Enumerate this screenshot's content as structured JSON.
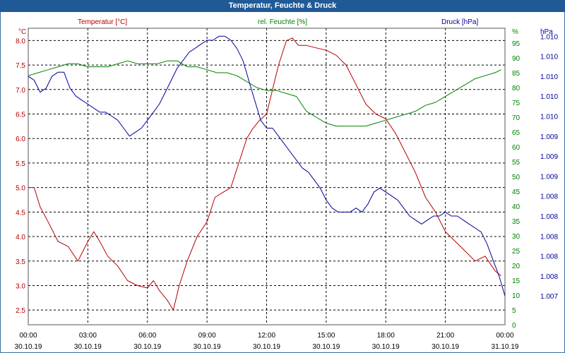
{
  "window": {
    "title": "Temperatur, Feuchte & Druck"
  },
  "colors": {
    "temperature": "#b40000",
    "humidity": "#008000",
    "pressure": "#00009c",
    "grid": "#000000",
    "titlebar": "#1f5a96"
  },
  "chart_data": {
    "type": "line",
    "title": "Temperatur, Feuchte & Druck",
    "x_ticks": [
      {
        "hour": 0,
        "time": "00:00",
        "date": "30.10.19"
      },
      {
        "hour": 3,
        "time": "03:00",
        "date": "30.10.19"
      },
      {
        "hour": 6,
        "time": "06:00",
        "date": "30.10.19"
      },
      {
        "hour": 9,
        "time": "09:00",
        "date": "30.10.19"
      },
      {
        "hour": 12,
        "time": "12:00",
        "date": "30.10.19"
      },
      {
        "hour": 15,
        "time": "15:00",
        "date": "30.10.19"
      },
      {
        "hour": 18,
        "time": "18:00",
        "date": "30.10.19"
      },
      {
        "hour": 21,
        "time": "21:00",
        "date": "30.10.19"
      },
      {
        "hour": 24,
        "time": "00:00",
        "date": "31.10.19"
      }
    ],
    "xlim": [
      0,
      24
    ],
    "axes": {
      "left": {
        "label": "Temperatur [°C]",
        "unit": "°C",
        "min": 2.2,
        "max": 8.25,
        "ticks": [
          "2.5",
          "3.0",
          "3.5",
          "4.0",
          "4.5",
          "5.0",
          "5.5",
          "6.0",
          "6.5",
          "7.0",
          "7.5",
          "8.0"
        ]
      },
      "middle": {
        "label": "rel. Feuchte [%]",
        "unit": "%",
        "min": 0,
        "max": 100,
        "ticks": [
          "0",
          "5",
          "10",
          "15",
          "20",
          "25",
          "30",
          "35",
          "40",
          "45",
          "50",
          "55",
          "60",
          "65",
          "70",
          "75",
          "80",
          "85",
          "90",
          "95"
        ]
      },
      "right": {
        "label": "Druck [hPa]",
        "unit": "hPa",
        "min": 1006.64,
        "max": 1010.35,
        "ticks": [
          "1.007",
          "1.008",
          "1.008",
          "1.008",
          "1.008",
          "1.008",
          "1.009",
          "1.009",
          "1.009",
          "1.010",
          "1.010",
          "1.010",
          "1.010",
          "1.010"
        ]
      }
    },
    "series": [
      {
        "name": "Temperatur",
        "axis": "left",
        "color": "#b40000",
        "x": [
          0,
          0.3,
          0.6,
          1.0,
          1.5,
          2.0,
          2.5,
          3.0,
          3.3,
          3.6,
          4.0,
          4.5,
          5.0,
          5.5,
          6.0,
          6.3,
          6.6,
          7.0,
          7.3,
          7.6,
          8.0,
          8.5,
          9.0,
          9.4,
          9.8,
          10.2,
          10.6,
          11.0,
          11.3,
          11.6,
          12.0,
          12.3,
          12.6,
          13.0,
          13.3,
          13.6,
          14.0,
          14.5,
          15.0,
          15.5,
          16.0,
          16.5,
          17.0,
          17.5,
          18.0,
          18.5,
          19.0,
          19.5,
          20.0,
          20.5,
          21.0,
          21.5,
          22.0,
          22.5,
          23.0,
          23.5,
          23.8
        ],
        "values": [
          5.0,
          5.0,
          4.6,
          4.3,
          3.9,
          3.8,
          3.5,
          3.9,
          4.1,
          3.9,
          3.6,
          3.4,
          3.1,
          3.0,
          2.95,
          3.1,
          2.9,
          2.7,
          2.5,
          3.0,
          3.5,
          4.0,
          4.3,
          4.8,
          4.9,
          5.0,
          5.5,
          6.0,
          6.2,
          6.35,
          6.5,
          7.0,
          7.5,
          8.0,
          8.05,
          7.9,
          7.9,
          7.85,
          7.8,
          7.7,
          7.5,
          7.1,
          6.7,
          6.5,
          6.4,
          6.1,
          5.7,
          5.3,
          4.8,
          4.5,
          4.1,
          3.9,
          3.7,
          3.5,
          3.6,
          3.3,
          3.2
        ]
      },
      {
        "name": "rel. Feuchte",
        "axis": "middle",
        "color": "#008000",
        "x": [
          0,
          0.5,
          1.0,
          1.5,
          2.0,
          2.5,
          3.0,
          3.5,
          4.0,
          4.5,
          5.0,
          5.5,
          6.0,
          6.5,
          7.0,
          7.5,
          8.0,
          8.5,
          9.0,
          9.5,
          10.0,
          10.5,
          11.0,
          11.5,
          12.0,
          12.5,
          13.0,
          13.5,
          14.0,
          14.5,
          15.0,
          15.5,
          16.0,
          16.5,
          17.0,
          17.5,
          18.0,
          18.5,
          19.0,
          19.5,
          20.0,
          20.5,
          21.0,
          21.5,
          22.0,
          22.5,
          23.0,
          23.5,
          23.8
        ],
        "values": [
          84,
          85,
          86,
          87,
          88,
          88,
          87,
          87,
          87,
          88,
          89,
          88,
          88,
          88,
          89,
          89,
          87,
          87,
          86,
          85,
          85,
          84,
          82,
          80,
          79,
          79,
          78,
          77,
          72,
          70,
          68,
          67,
          67,
          67,
          67,
          68,
          69,
          70,
          71,
          72,
          74,
          75,
          77,
          79,
          81,
          83,
          84,
          85,
          86
        ]
      },
      {
        "name": "Druck",
        "axis": "right",
        "color": "#00009c",
        "x": [
          0,
          0.3,
          0.6,
          0.9,
          1.2,
          1.5,
          1.8,
          2.1,
          2.4,
          2.7,
          3.0,
          3.3,
          3.6,
          3.9,
          4.2,
          4.5,
          4.8,
          5.1,
          5.4,
          5.7,
          6.0,
          6.3,
          6.6,
          6.9,
          7.2,
          7.5,
          7.8,
          8.1,
          8.4,
          8.7,
          9.0,
          9.3,
          9.6,
          9.9,
          10.2,
          10.5,
          10.8,
          11.1,
          11.4,
          11.7,
          12.0,
          12.3,
          12.6,
          12.9,
          13.2,
          13.5,
          13.8,
          14.1,
          14.4,
          14.7,
          15.0,
          15.3,
          15.6,
          15.9,
          16.2,
          16.5,
          16.8,
          17.1,
          17.4,
          17.7,
          18.0,
          18.3,
          18.6,
          18.9,
          19.2,
          19.5,
          19.8,
          20.1,
          20.4,
          20.7,
          21.0,
          21.3,
          21.6,
          21.9,
          22.2,
          22.5,
          22.8,
          23.1,
          23.4,
          23.7,
          24.0
        ],
        "values": [
          1009.75,
          1009.7,
          1009.55,
          1009.6,
          1009.75,
          1009.8,
          1009.8,
          1009.6,
          1009.5,
          1009.45,
          1009.4,
          1009.35,
          1009.3,
          1009.3,
          1009.25,
          1009.2,
          1009.1,
          1009.0,
          1009.05,
          1009.1,
          1009.2,
          1009.3,
          1009.4,
          1009.55,
          1009.7,
          1009.85,
          1009.95,
          1010.05,
          1010.1,
          1010.15,
          1010.2,
          1010.2,
          1010.25,
          1010.25,
          1010.2,
          1010.1,
          1009.95,
          1009.7,
          1009.45,
          1009.2,
          1009.1,
          1009.1,
          1009.0,
          1008.9,
          1008.8,
          1008.7,
          1008.6,
          1008.55,
          1008.45,
          1008.35,
          1008.2,
          1008.1,
          1008.05,
          1008.05,
          1008.05,
          1008.1,
          1008.05,
          1008.15,
          1008.3,
          1008.35,
          1008.3,
          1008.25,
          1008.2,
          1008.1,
          1008.0,
          1007.95,
          1007.9,
          1007.95,
          1008.0,
          1008.0,
          1008.05,
          1008.0,
          1008.0,
          1007.95,
          1007.9,
          1007.85,
          1007.8,
          1007.65,
          1007.45,
          1007.25,
          1007.0
        ]
      }
    ]
  }
}
